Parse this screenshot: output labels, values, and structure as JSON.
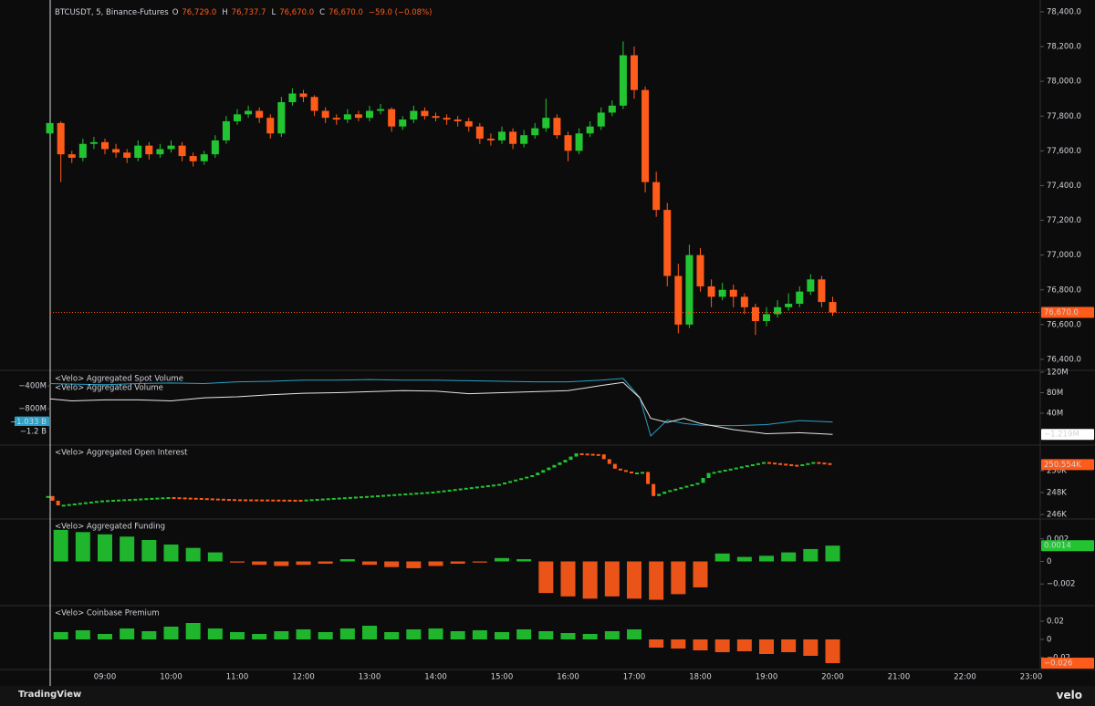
{
  "chart_data": [
    {
      "type": "candlestick",
      "title": "BTCUSDT, 5, Binance-Futures",
      "ohlc_header": [
        {
          "key": "O",
          "value": "76,729.0"
        },
        {
          "key": "H",
          "value": "76,737.7"
        },
        {
          "key": "L",
          "value": "76,670.0"
        },
        {
          "key": "C",
          "value": "76,670.0"
        }
      ],
      "change": "−59.0 (−0.08%)",
      "up_color": "#22c531",
      "down_color": "#ff5b1a",
      "x": [
        "08:10",
        "08:20",
        "08:30",
        "08:40",
        "08:50",
        "09:00",
        "09:10",
        "09:20",
        "09:30",
        "09:40",
        "09:50",
        "10:00",
        "10:10",
        "10:20",
        "10:30",
        "10:40",
        "10:50",
        "11:00",
        "11:10",
        "11:20",
        "11:30",
        "11:40",
        "11:50",
        "12:00",
        "12:10",
        "12:20",
        "12:30",
        "12:40",
        "12:50",
        "13:00",
        "13:10",
        "13:20",
        "13:30",
        "13:40",
        "13:50",
        "14:00",
        "14:10",
        "14:20",
        "14:30",
        "14:40",
        "14:50",
        "15:00",
        "15:10",
        "15:20",
        "15:30",
        "15:40",
        "15:50",
        "16:00",
        "16:10",
        "16:20",
        "16:30",
        "16:40",
        "16:50",
        "17:00",
        "17:10",
        "17:20",
        "17:30",
        "17:40",
        "17:50",
        "18:00",
        "18:10",
        "18:20",
        "18:30",
        "18:40",
        "18:50",
        "19:00",
        "19:10",
        "19:20",
        "19:30",
        "19:40",
        "19:50",
        "20:00"
      ],
      "ohlc": [
        [
          77700,
          77790,
          77670,
          77760
        ],
        [
          77760,
          77770,
          77420,
          77580
        ],
        [
          77580,
          77600,
          77530,
          77560
        ],
        [
          77560,
          77670,
          77540,
          77640
        ],
        [
          77640,
          77680,
          77610,
          77650
        ],
        [
          77650,
          77670,
          77580,
          77610
        ],
        [
          77610,
          77640,
          77560,
          77590
        ],
        [
          77590,
          77610,
          77530,
          77560
        ],
        [
          77560,
          77660,
          77540,
          77630
        ],
        [
          77630,
          77650,
          77550,
          77580
        ],
        [
          77580,
          77640,
          77560,
          77610
        ],
        [
          77610,
          77660,
          77590,
          77630
        ],
        [
          77630,
          77650,
          77540,
          77570
        ],
        [
          77570,
          77590,
          77510,
          77540
        ],
        [
          77540,
          77600,
          77520,
          77580
        ],
        [
          77580,
          77690,
          77560,
          77660
        ],
        [
          77660,
          77800,
          77640,
          77770
        ],
        [
          77770,
          77840,
          77750,
          77810
        ],
        [
          77810,
          77860,
          77790,
          77830
        ],
        [
          77830,
          77850,
          77760,
          77790
        ],
        [
          77790,
          77810,
          77670,
          77700
        ],
        [
          77700,
          77910,
          77680,
          77880
        ],
        [
          77880,
          77960,
          77860,
          77930
        ],
        [
          77930,
          77950,
          77880,
          77910
        ],
        [
          77910,
          77920,
          77800,
          77830
        ],
        [
          77830,
          77850,
          77760,
          77790
        ],
        [
          77790,
          77810,
          77750,
          77780
        ],
        [
          77780,
          77840,
          77760,
          77810
        ],
        [
          77810,
          77830,
          77770,
          77790
        ],
        [
          77790,
          77860,
          77770,
          77830
        ],
        [
          77830,
          77870,
          77810,
          77840
        ],
        [
          77840,
          77850,
          77710,
          77740
        ],
        [
          77740,
          77800,
          77720,
          77780
        ],
        [
          77780,
          77860,
          77760,
          77830
        ],
        [
          77830,
          77850,
          77780,
          77800
        ],
        [
          77800,
          77820,
          77770,
          77790
        ],
        [
          77790,
          77810,
          77750,
          77780
        ],
        [
          77780,
          77800,
          77740,
          77770
        ],
        [
          77770,
          77790,
          77710,
          77740
        ],
        [
          77740,
          77760,
          77640,
          77670
        ],
        [
          77670,
          77700,
          77630,
          77660
        ],
        [
          77660,
          77740,
          77640,
          77710
        ],
        [
          77710,
          77730,
          77610,
          77640
        ],
        [
          77640,
          77720,
          77620,
          77690
        ],
        [
          77690,
          77760,
          77670,
          77730
        ],
        [
          77730,
          77900,
          77710,
          77790
        ],
        [
          77790,
          77810,
          77670,
          77690
        ],
        [
          77690,
          77710,
          77540,
          77600
        ],
        [
          77600,
          77730,
          77580,
          77700
        ],
        [
          77700,
          77770,
          77680,
          77740
        ],
        [
          77740,
          77850,
          77720,
          77820
        ],
        [
          77820,
          77890,
          77800,
          77860
        ],
        [
          77860,
          78230,
          77840,
          78150
        ],
        [
          78150,
          78200,
          77900,
          77950
        ],
        [
          77950,
          77970,
          77360,
          77420
        ],
        [
          77420,
          77480,
          77220,
          77260
        ],
        [
          77260,
          77300,
          76820,
          76880
        ],
        [
          76880,
          76950,
          76550,
          76600
        ],
        [
          76600,
          77060,
          76580,
          77000
        ],
        [
          77000,
          77040,
          76790,
          76820
        ],
        [
          76820,
          76860,
          76700,
          76760
        ],
        [
          76760,
          76840,
          76740,
          76800
        ],
        [
          76800,
          76830,
          76700,
          76760
        ],
        [
          76760,
          76780,
          76660,
          76700
        ],
        [
          76700,
          76720,
          76540,
          76620
        ],
        [
          76620,
          76700,
          76590,
          76660
        ],
        [
          76660,
          76740,
          76640,
          76700
        ],
        [
          76700,
          76780,
          76680,
          76720
        ],
        [
          76720,
          76820,
          76700,
          76790
        ],
        [
          76790,
          76890,
          76770,
          76860
        ],
        [
          76860,
          76880,
          76700,
          76730
        ],
        [
          76730,
          76760,
          76650,
          76670
        ]
      ],
      "ylim": [
        76342,
        78468
      ],
      "yticks": [
        {
          "value": 76400,
          "label": "76,400.0"
        },
        {
          "value": 76600,
          "label": "76,600.0"
        },
        {
          "value": 76800,
          "label": "76,800.0"
        },
        {
          "value": 77000,
          "label": "77,000.0"
        },
        {
          "value": 77200,
          "label": "77,200.0"
        },
        {
          "value": 77400,
          "label": "77,400.0"
        },
        {
          "value": 77600,
          "label": "77,600.0"
        },
        {
          "value": 77800,
          "label": "77,800.0"
        },
        {
          "value": 78000,
          "label": "78,000.0"
        },
        {
          "value": 78200,
          "label": "78,200.0"
        },
        {
          "value": 78400,
          "label": "78,400.0"
        }
      ],
      "last_price": {
        "value": 76670,
        "label": "76,670.0",
        "color": "#ff5b1a"
      }
    },
    {
      "type": "line",
      "x": [
        "08:10",
        "08:30",
        "09:00",
        "09:30",
        "10:00",
        "10:30",
        "11:00",
        "11:30",
        "12:00",
        "12:30",
        "13:00",
        "13:30",
        "14:00",
        "14:30",
        "15:00",
        "15:30",
        "16:00",
        "16:30",
        "16:50",
        "17:05",
        "17:15",
        "17:30",
        "17:45",
        "18:00",
        "18:30",
        "19:00",
        "19:30",
        "20:00"
      ],
      "series": [
        {
          "name": "<Velo> Aggregated Spot Volume",
          "color": "#2ba0c6",
          "axis": "y2",
          "values": [
            -360000000,
            -370000000,
            -380000000,
            -360000000,
            -350000000,
            -360000000,
            -330000000,
            -320000000,
            -300000000,
            -300000000,
            -290000000,
            -300000000,
            -300000000,
            -310000000,
            -320000000,
            -330000000,
            -330000000,
            -300000000,
            -270000000,
            -600000000,
            -1280000000,
            -1000000000,
            -1060000000,
            -1090000000,
            -1100000000,
            -1080000000,
            -1010000000,
            -1033000000
          ]
        },
        {
          "name": "<Velo> Aggregated Volume",
          "color": "#e6e6e6",
          "values": [
            68000000,
            64000000,
            66000000,
            66000000,
            64000000,
            70000000,
            72000000,
            76000000,
            79000000,
            80000000,
            82000000,
            84000000,
            83000000,
            78000000,
            80000000,
            82000000,
            84000000,
            94000000,
            100000000,
            70000000,
            30000000,
            22000000,
            30000000,
            20000000,
            8000000,
            0,
            2000000,
            -1219000
          ]
        }
      ],
      "ylim": [
        -20400000,
        121800000
      ],
      "yticks": [
        {
          "value": 40000000,
          "label": "40M"
        },
        {
          "value": 80000000,
          "label": "80M"
        },
        {
          "value": 120000000,
          "label": "120M"
        }
      ],
      "y2lim": [
        -1424000000,
        -144000000
      ],
      "y2ticks": [
        {
          "value": -400000000,
          "label": "−400M"
        },
        {
          "value": -800000000,
          "label": "−800M"
        }
      ],
      "y2_tags": [
        {
          "value": -1033000000,
          "label": "−1.033 B",
          "color": "#2ba0c6"
        },
        {
          "value": -1200000000,
          "label": "−1.2 B",
          "color": "#0c0c0c"
        }
      ],
      "tag": {
        "value": -1219000,
        "label": "−1.219M",
        "color": "#ffffff"
      }
    },
    {
      "type": "blocks",
      "title": "<Velo> Aggregated Open Interest",
      "up_color": "#22c531",
      "down_color": "#ff5b1a",
      "x": [
        "08:10",
        "08:20",
        "09:00",
        "10:00",
        "11:00",
        "12:00",
        "13:00",
        "14:00",
        "15:00",
        "15:30",
        "16:00",
        "16:10",
        "16:30",
        "16:45",
        "17:00",
        "17:10",
        "17:20",
        "17:30",
        "18:00",
        "18:10",
        "18:30",
        "19:00",
        "19:30",
        "19:45",
        "20:00"
      ],
      "values": [
        247600,
        246750,
        247200,
        247500,
        247300,
        247250,
        247600,
        248000,
        248700,
        249500,
        250900,
        251500,
        251400,
        250100,
        249700,
        249800,
        247600,
        248000,
        248800,
        249700,
        250100,
        250700,
        250400,
        250700,
        250554
      ],
      "ylim": [
        245670,
        252330
      ],
      "yticks": [
        {
          "value": 246000,
          "label": "246K"
        },
        {
          "value": 248000,
          "label": "248K"
        },
        {
          "value": 250000,
          "label": "250K"
        }
      ],
      "tag": {
        "value": 250554,
        "label": "250.554K",
        "color": "#ff5b1a"
      }
    },
    {
      "type": "bar",
      "title": "<Velo> Aggregated Funding",
      "colors": {
        "positive": "#22c531",
        "negative": "#ff5b1a"
      },
      "x": [
        "08:20",
        "08:40",
        "09:00",
        "09:20",
        "09:40",
        "10:00",
        "10:20",
        "10:40",
        "11:00",
        "11:20",
        "11:40",
        "12:00",
        "12:20",
        "12:40",
        "13:00",
        "13:20",
        "13:40",
        "14:00",
        "14:20",
        "14:40",
        "15:00",
        "15:20",
        "15:40",
        "16:00",
        "16:20",
        "16:40",
        "17:00",
        "17:20",
        "17:40",
        "18:00",
        "18:20",
        "18:40",
        "19:00",
        "19:20",
        "19:40",
        "20:00"
      ],
      "values": [
        0.0028,
        0.0026,
        0.0024,
        0.0022,
        0.0019,
        0.0015,
        0.0012,
        0.0008,
        -0.0001,
        -0.0003,
        -0.0004,
        -0.0003,
        -0.0002,
        0.0002,
        -0.0003,
        -0.0005,
        -0.0006,
        -0.0004,
        -0.0002,
        -0.0001,
        0.0003,
        0.0002,
        -0.0028,
        -0.0031,
        -0.0033,
        -0.0031,
        -0.0033,
        -0.0034,
        -0.0029,
        -0.0023,
        0.0007,
        0.0004,
        0.0005,
        0.0008,
        0.0011,
        0.0014
      ],
      "ylim": [
        -0.00384,
        0.00376
      ],
      "yticks": [
        {
          "value": -0.002,
          "label": "−0.002"
        },
        0,
        0.002
      ],
      "tag": {
        "value": 0.0014,
        "label": "0.0014",
        "color": "#22c531"
      }
    },
    {
      "type": "bar",
      "title": "<Velo> Coinbase Premium",
      "colors": {
        "positive": "#22c531",
        "negative": "#ff5b1a"
      },
      "x": [
        "08:20",
        "08:40",
        "09:00",
        "09:20",
        "09:40",
        "10:00",
        "10:20",
        "10:40",
        "11:00",
        "11:20",
        "11:40",
        "12:00",
        "12:20",
        "12:40",
        "13:00",
        "13:20",
        "13:40",
        "14:00",
        "14:20",
        "14:40",
        "15:00",
        "15:20",
        "15:40",
        "16:00",
        "16:20",
        "16:40",
        "17:00",
        "17:20",
        "17:40",
        "18:00",
        "18:20",
        "18:40",
        "19:00",
        "19:20",
        "19:40",
        "20:00"
      ],
      "values": [
        0.008,
        0.01,
        0.006,
        0.012,
        0.009,
        0.014,
        0.018,
        0.012,
        0.008,
        0.006,
        0.009,
        0.011,
        0.008,
        0.012,
        0.015,
        0.008,
        0.011,
        0.012,
        0.009,
        0.01,
        0.008,
        0.011,
        0.009,
        0.007,
        0.006,
        0.009,
        0.011,
        -0.009,
        -0.01,
        -0.012,
        -0.014,
        -0.013,
        -0.016,
        -0.014,
        -0.018,
        -0.026
      ],
      "ylim": [
        -0.032,
        0.037
      ],
      "yticks": [
        {
          "value": -0.02,
          "label": "−0.02"
        },
        0,
        0.02
      ],
      "tag": {
        "value": -0.026,
        "label": "−0.026",
        "color": "#ff5b1a"
      },
      "xticks": [
        "09:00",
        "10:00",
        "11:00",
        "12:00",
        "13:00",
        "14:00",
        "15:00",
        "16:00",
        "17:00",
        "18:00",
        "19:00",
        "20:00",
        "21:00",
        "22:00",
        "23:00"
      ]
    }
  ],
  "footer": {
    "left": "TradingView",
    "right": "velo"
  }
}
